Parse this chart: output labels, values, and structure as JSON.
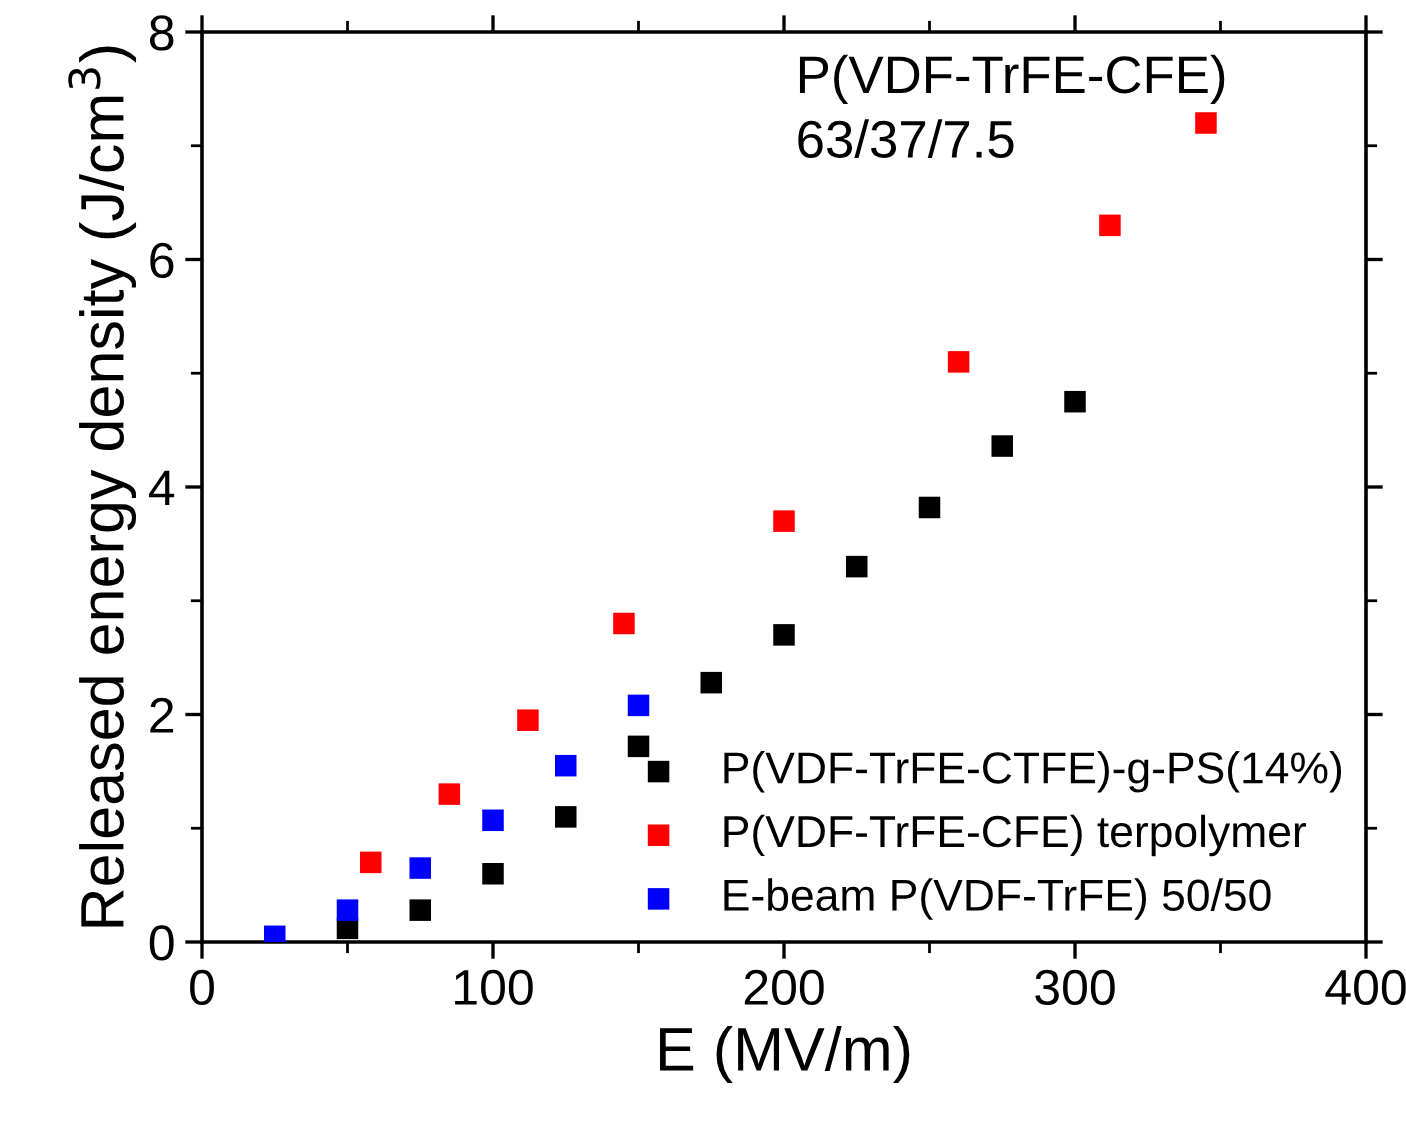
{
  "chart_data": {
    "type": "scatter",
    "xlabel": "E (MV/m)",
    "ylabel": "Released energy density (J/cm$^{3}$)",
    "xlim": [
      0,
      400
    ],
    "ylim": [
      0,
      8
    ],
    "xticks": [
      0,
      100,
      200,
      300,
      400
    ],
    "yticks": [
      0,
      2,
      4,
      6,
      8
    ],
    "marker": "square",
    "grid": false,
    "legend": "bottom right",
    "annotations": [
      "P(VDF-TrFE-CFE)\n63/37/7.5"
    ],
    "series": [
      {
        "name": "P(VDF-TrFE-CTFE)-g-PS(14%)",
        "color": "#000000",
        "x": [
          50,
          75,
          100,
          125,
          150,
          175,
          200,
          225,
          250,
          275,
          300
        ],
        "values": [
          0.12,
          0.28,
          0.6,
          1.1,
          1.72,
          2.28,
          2.7,
          3.3,
          3.82,
          4.36,
          4.75
        ]
      },
      {
        "name": "P(VDF-TrFE-CFE) terpolymer",
        "color": "#ff0000",
        "x": [
          58,
          85,
          112,
          145,
          200,
          260,
          312,
          345
        ],
        "values": [
          0.7,
          1.3,
          1.95,
          2.8,
          3.7,
          5.1,
          6.3,
          7.2
        ]
      },
      {
        "name": "E-beam P(VDF-TrFE) 50/50",
        "color": "#0000ff",
        "x": [
          25,
          50,
          75,
          100,
          125,
          150
        ],
        "values": [
          0.05,
          0.28,
          0.65,
          1.07,
          1.55,
          2.08
        ]
      }
    ]
  }
}
